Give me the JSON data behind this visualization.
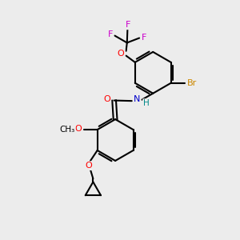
{
  "background_color": "#ececec",
  "bond_color": "#000000",
  "atom_colors": {
    "O": "#ff0000",
    "N": "#0000cc",
    "H": "#008888",
    "Br": "#cc8800",
    "F": "#cc00cc"
  },
  "figsize": [
    3.0,
    3.0
  ],
  "dpi": 100
}
